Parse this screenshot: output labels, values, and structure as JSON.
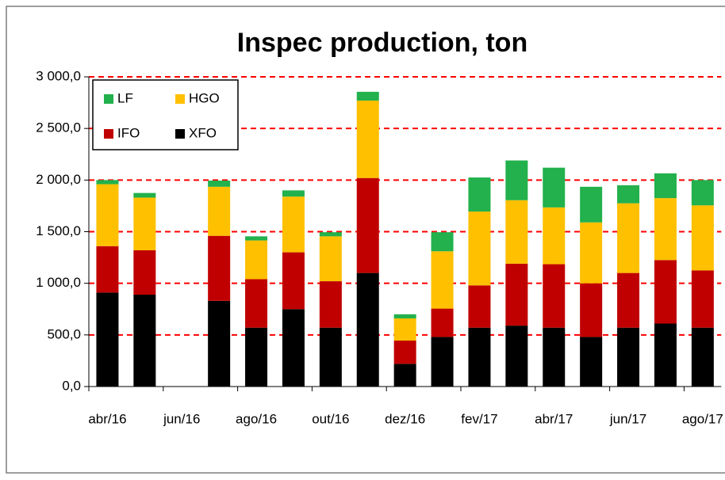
{
  "chart_data": {
    "type": "bar",
    "stacked": true,
    "title": "Inspec production, ton",
    "categories": [
      "abr/16",
      null,
      "jun/16",
      null,
      "ago/16",
      null,
      "out/16",
      null,
      "dez/16",
      null,
      "fev/17",
      null,
      "abr/17",
      null,
      "jun/17",
      null,
      "ago/17"
    ],
    "series": [
      {
        "name": "XFO",
        "color": "#000000",
        "values": [
          910,
          890,
          null,
          830,
          570,
          750,
          570,
          1100,
          220,
          480,
          570,
          590,
          570,
          480,
          570,
          610,
          570
        ]
      },
      {
        "name": "IFO",
        "color": "#c00000",
        "values": [
          450,
          430,
          null,
          630,
          470,
          550,
          450,
          920,
          225,
          275,
          410,
          600,
          615,
          520,
          530,
          615,
          555
        ]
      },
      {
        "name": "HGO",
        "color": "#ffc000",
        "values": [
          600,
          510,
          null,
          475,
          375,
          540,
          435,
          750,
          215,
          555,
          715,
          615,
          550,
          590,
          675,
          600,
          630
        ]
      },
      {
        "name": "LF",
        "color": "#22b14c",
        "values": [
          40,
          45,
          null,
          60,
          40,
          60,
          40,
          85,
          40,
          185,
          330,
          385,
          385,
          345,
          175,
          240,
          245
        ]
      }
    ],
    "ylim": [
      0,
      3000
    ],
    "yticks": [
      {
        "value": 0,
        "label": "0,0"
      },
      {
        "value": 500,
        "label": "500,0"
      },
      {
        "value": 1000,
        "label": "1 000,0"
      },
      {
        "value": 1500,
        "label": "1 500,0"
      },
      {
        "value": 2000,
        "label": "2 000,0"
      },
      {
        "value": 2500,
        "label": "2 500,0"
      },
      {
        "value": 3000,
        "label": "3 000,0"
      }
    ],
    "grid": true,
    "grid_color": "#ff0000",
    "legend": "upper left"
  }
}
